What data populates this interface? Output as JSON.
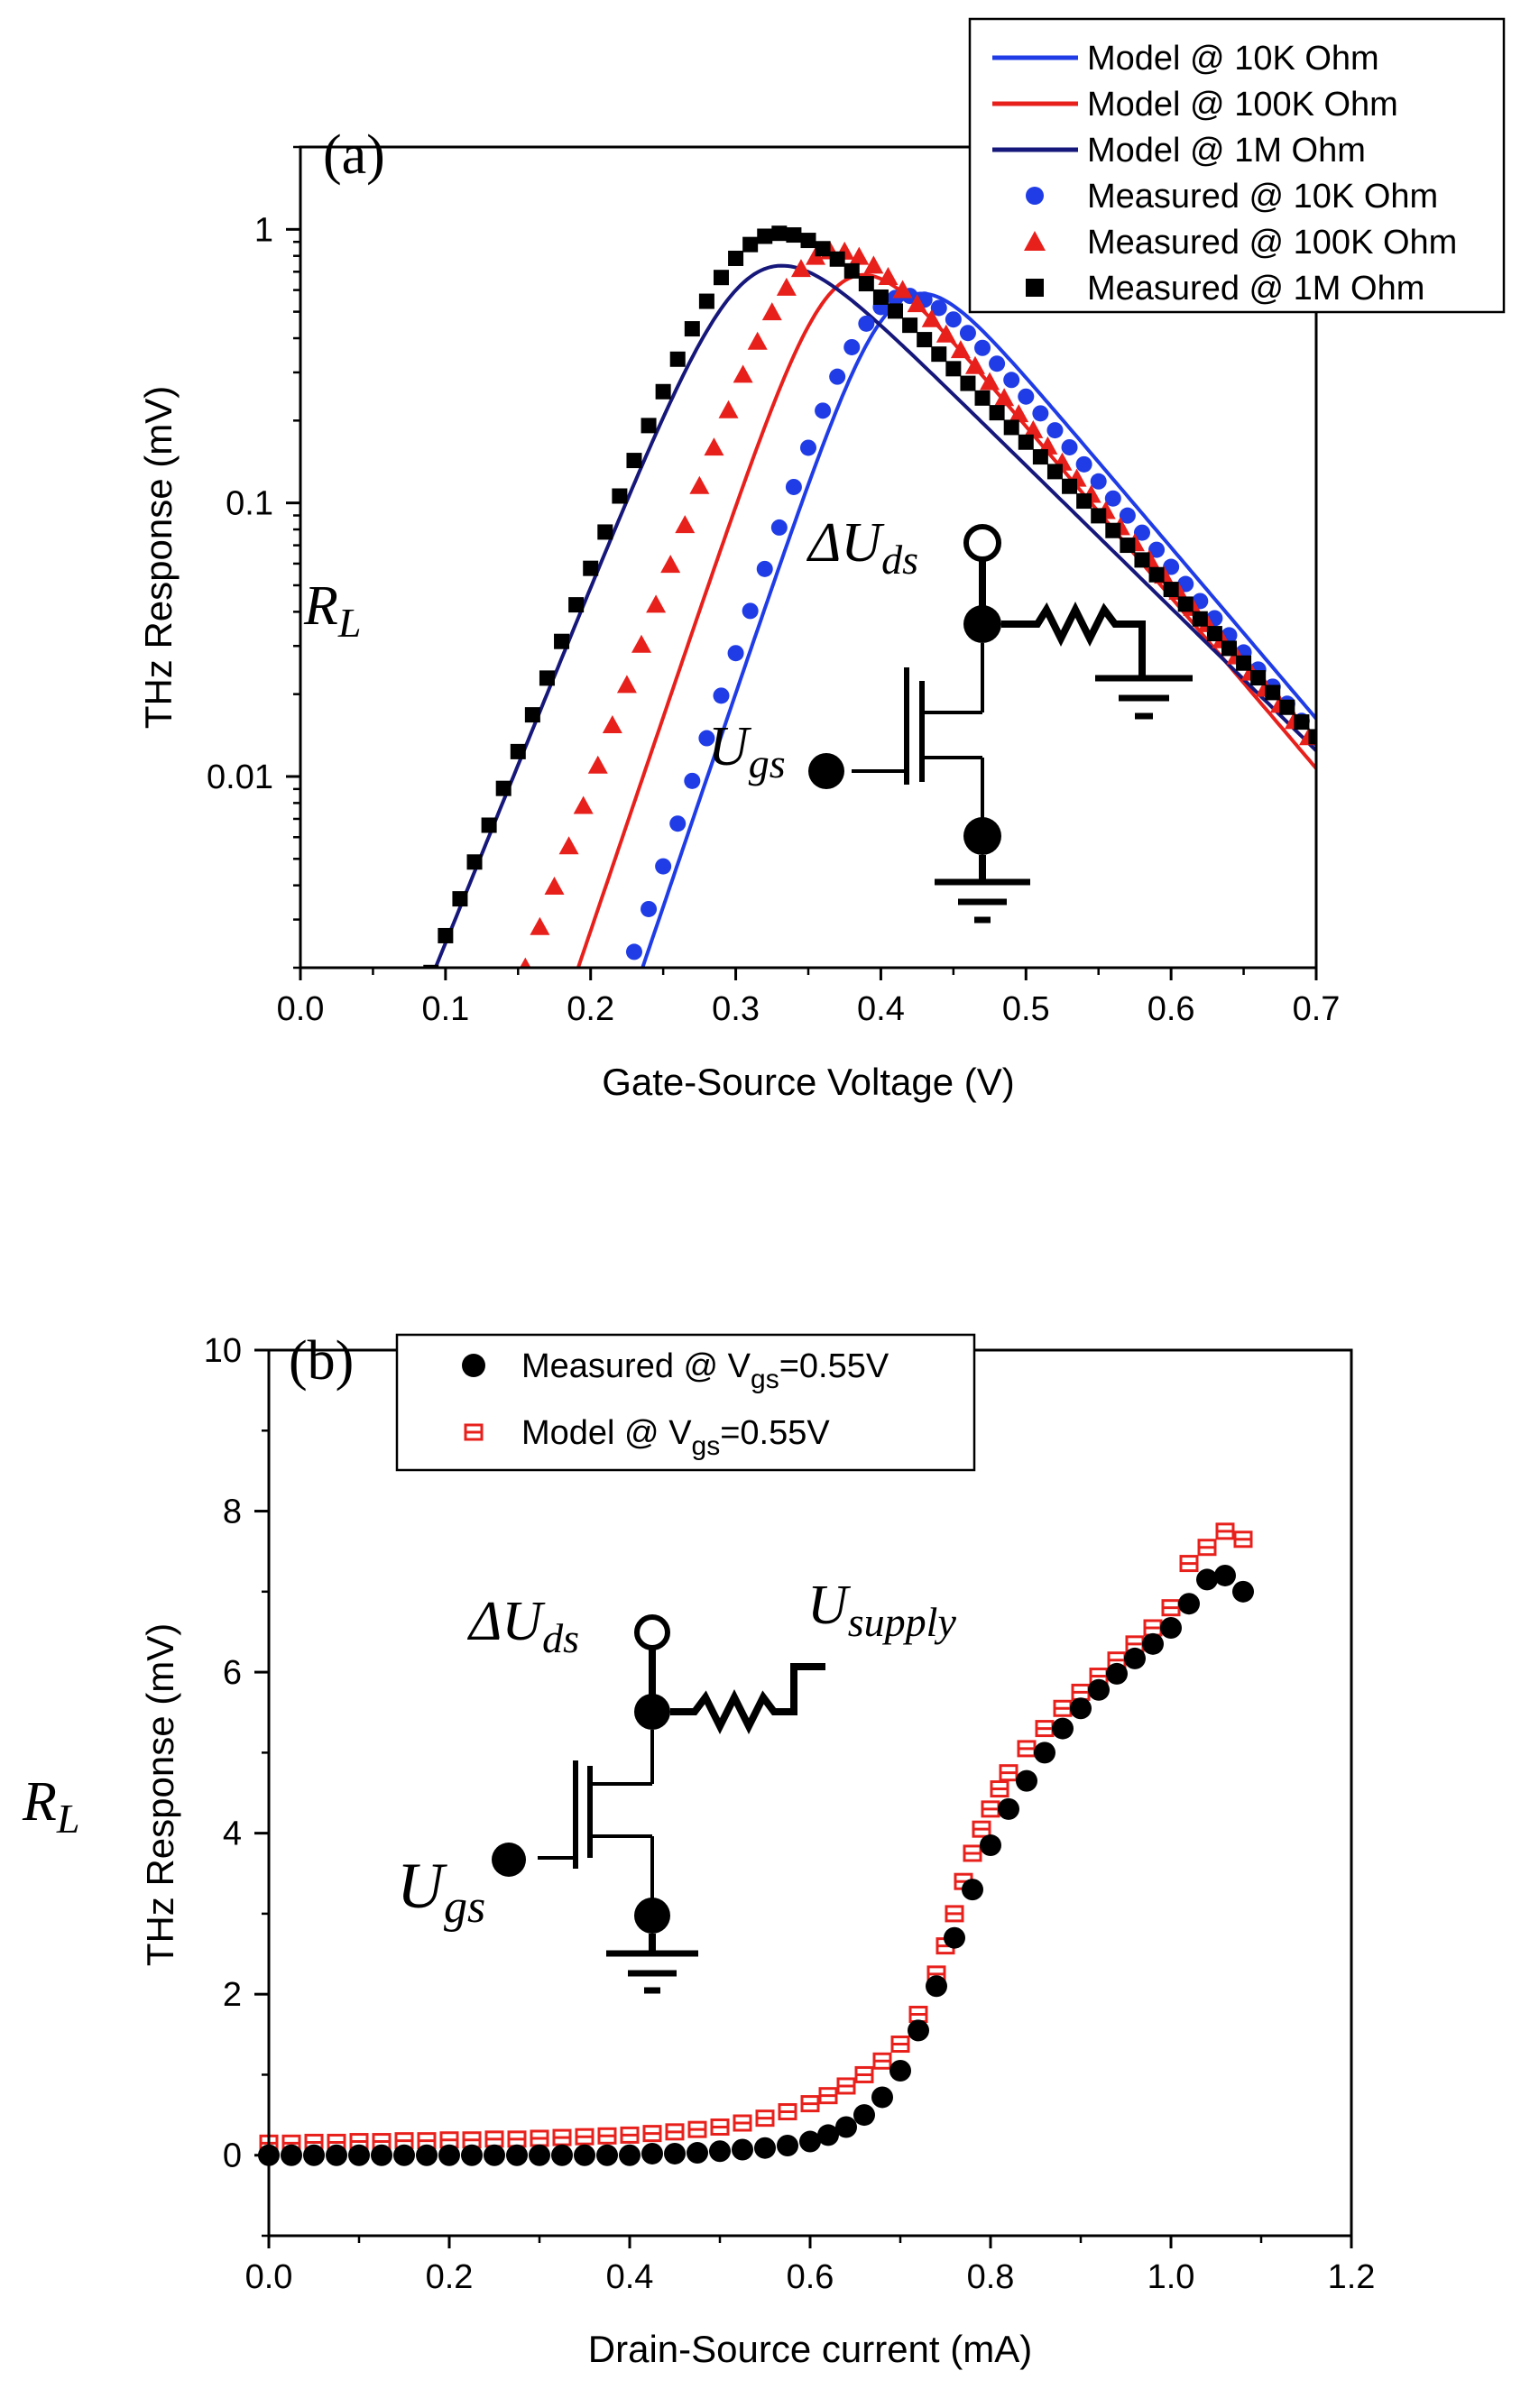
{
  "chart_data": [
    {
      "id": "a",
      "type": "line",
      "panel_label": "(a)",
      "xlabel": "Gate-Source Voltage (V)",
      "ylabel": "THz Response (mV)",
      "xlim": [
        0.0,
        0.7
      ],
      "ylim": [
        0.002,
        2.0
      ],
      "yscale": "log",
      "xticks": [
        "0.0",
        "0.1",
        "0.2",
        "0.3",
        "0.4",
        "0.5",
        "0.6",
        "0.7"
      ],
      "yticks": [
        {
          "value": 0.01,
          "label": "0.01"
        },
        {
          "value": 0.1,
          "label": "0.1"
        },
        {
          "value": 1,
          "label": "1"
        }
      ],
      "legend_position": "top-right",
      "legend": [
        {
          "label": "Model @ 10K Ohm",
          "kind": "line",
          "color": "#1f3ce6"
        },
        {
          "label": "Model @ 100K Ohm",
          "kind": "line",
          "color": "#e8201c"
        },
        {
          "label": "Model @ 1M Ohm",
          "kind": "line",
          "color": "#16177a"
        },
        {
          "label": "Measured @ 10K Ohm",
          "kind": "circle",
          "color": "#1f3ce6"
        },
        {
          "label": "Measured @ 100K Ohm",
          "kind": "triangle",
          "color": "#e8201c"
        },
        {
          "label": "Measured @ 1M Ohm",
          "kind": "square",
          "color": "#000000"
        }
      ],
      "series": [
        {
          "name": "Model @ 10K Ohm",
          "kind": "line",
          "color": "#1f3ce6",
          "params": {
            "x0": 0.41,
            "peak": 0.53,
            "k": 36
          }
        },
        {
          "name": "Model @ 100K Ohm",
          "kind": "line",
          "color": "#e8201c",
          "params": {
            "x0": 0.37,
            "peak": 0.62,
            "k": 36
          }
        },
        {
          "name": "Model @ 1M Ohm",
          "kind": "line",
          "color": "#16177a",
          "params": {
            "x0": 0.31,
            "peak": 0.67,
            "k": 30
          }
        },
        {
          "name": "Measured @ 10K Ohm",
          "kind": "circle",
          "color": "#1f3ce6",
          "params": {
            "x0": 0.4,
            "peak": 0.52,
            "k": 36
          },
          "x_range": [
            0.2,
            0.7
          ]
        },
        {
          "name": "Measured @ 100K Ohm",
          "kind": "triangle",
          "color": "#e8201c",
          "params": {
            "x0": 0.35,
            "peak": 0.76,
            "k": 34
          },
          "x_range": [
            0.135,
            0.7
          ]
        },
        {
          "name": "Measured @ 1M Ohm",
          "kind": "square",
          "color": "#000000",
          "params": {
            "x0": 0.31,
            "peak": 0.88,
            "k": 31
          },
          "x_range": [
            0.06,
            0.7
          ]
        }
      ]
    },
    {
      "id": "b",
      "type": "scatter",
      "panel_label": "(b)",
      "xlabel": "Drain-Source current (mA)",
      "ylabel": "THz Response (mV)",
      "xlim": [
        0.0,
        1.2
      ],
      "ylim": [
        -1.0,
        10.0
      ],
      "xticks": [
        "0.0",
        "0.2",
        "0.4",
        "0.6",
        "0.8",
        "1.0",
        "1.2"
      ],
      "yticks": [
        {
          "value": 0,
          "label": "0"
        },
        {
          "value": 2,
          "label": "2"
        },
        {
          "value": 4,
          "label": "4"
        },
        {
          "value": 6,
          "label": "6"
        },
        {
          "value": 8,
          "label": "8"
        },
        {
          "value": 10,
          "label": "10"
        }
      ],
      "legend_position": "top-left",
      "legend": [
        {
          "text": "Measured @ V",
          "sub": "gs",
          "tail": "=0.55V",
          "kind": "circle",
          "color": "#000000"
        },
        {
          "text": "Model @ V",
          "sub": "gs",
          "tail": "=0.55V",
          "kind": "open-square",
          "color": "#e8201c"
        }
      ],
      "series": [
        {
          "name": "Measured @ Vgs=0.55V",
          "kind": "circle",
          "color": "#000000",
          "x": [
            0.0,
            0.025,
            0.05,
            0.075,
            0.1,
            0.125,
            0.15,
            0.175,
            0.2,
            0.225,
            0.25,
            0.275,
            0.3,
            0.325,
            0.35,
            0.375,
            0.4,
            0.425,
            0.45,
            0.475,
            0.5,
            0.525,
            0.55,
            0.575,
            0.6,
            0.62,
            0.64,
            0.66,
            0.68,
            0.7,
            0.72,
            0.74,
            0.76,
            0.78,
            0.8,
            0.82,
            0.84,
            0.86,
            0.88,
            0.9,
            0.92,
            0.94,
            0.96,
            0.98,
            1.0,
            1.02,
            1.04,
            1.06,
            1.08
          ],
          "y": [
            0.0,
            0.0,
            0.0,
            0.0,
            0.0,
            0.0,
            0.0,
            0.0,
            0.0,
            0.0,
            0.0,
            0.0,
            0.0,
            0.0,
            0.0,
            0.0,
            0.0,
            0.02,
            0.02,
            0.03,
            0.05,
            0.07,
            0.09,
            0.12,
            0.17,
            0.25,
            0.35,
            0.5,
            0.72,
            1.05,
            1.55,
            2.1,
            2.7,
            3.3,
            3.85,
            4.3,
            4.65,
            5.0,
            5.3,
            5.55,
            5.78,
            5.98,
            6.17,
            6.35,
            6.55,
            6.85,
            7.15,
            7.2,
            7.0
          ]
        },
        {
          "name": "Model @ Vgs=0.55V",
          "kind": "open-square",
          "color": "#e8201c",
          "x": [
            0.0,
            0.025,
            0.05,
            0.075,
            0.1,
            0.125,
            0.15,
            0.175,
            0.2,
            0.225,
            0.25,
            0.275,
            0.3,
            0.325,
            0.35,
            0.375,
            0.4,
            0.425,
            0.45,
            0.475,
            0.5,
            0.525,
            0.55,
            0.575,
            0.6,
            0.62,
            0.64,
            0.66,
            0.68,
            0.7,
            0.72,
            0.74,
            0.75,
            0.76,
            0.77,
            0.78,
            0.79,
            0.8,
            0.81,
            0.82,
            0.84,
            0.86,
            0.88,
            0.9,
            0.92,
            0.94,
            0.96,
            0.98,
            1.0,
            1.02,
            1.04,
            1.06,
            1.08
          ],
          "y": [
            0.15,
            0.15,
            0.16,
            0.16,
            0.17,
            0.17,
            0.18,
            0.18,
            0.19,
            0.19,
            0.2,
            0.2,
            0.21,
            0.22,
            0.23,
            0.24,
            0.25,
            0.27,
            0.29,
            0.32,
            0.35,
            0.4,
            0.46,
            0.54,
            0.64,
            0.74,
            0.86,
            1.0,
            1.17,
            1.38,
            1.75,
            2.25,
            2.6,
            3.0,
            3.4,
            3.75,
            4.05,
            4.3,
            4.55,
            4.75,
            5.05,
            5.3,
            5.55,
            5.75,
            5.95,
            6.15,
            6.35,
            6.55,
            6.8,
            7.35,
            7.55,
            7.75,
            7.65
          ]
        }
      ]
    }
  ],
  "circuit_a": {
    "delta_u": "ΔU",
    "delta_u_sub": "ds",
    "ugs": "U",
    "ugs_sub": "gs",
    "rl": "R",
    "rl_sub": "L"
  },
  "circuit_b": {
    "delta_u": "ΔU",
    "delta_u_sub": "ds",
    "supply": "U",
    "supply_sub": "supply",
    "ugs": "U",
    "ugs_sub": "gs",
    "rl": "R",
    "rl_sub": "L"
  }
}
